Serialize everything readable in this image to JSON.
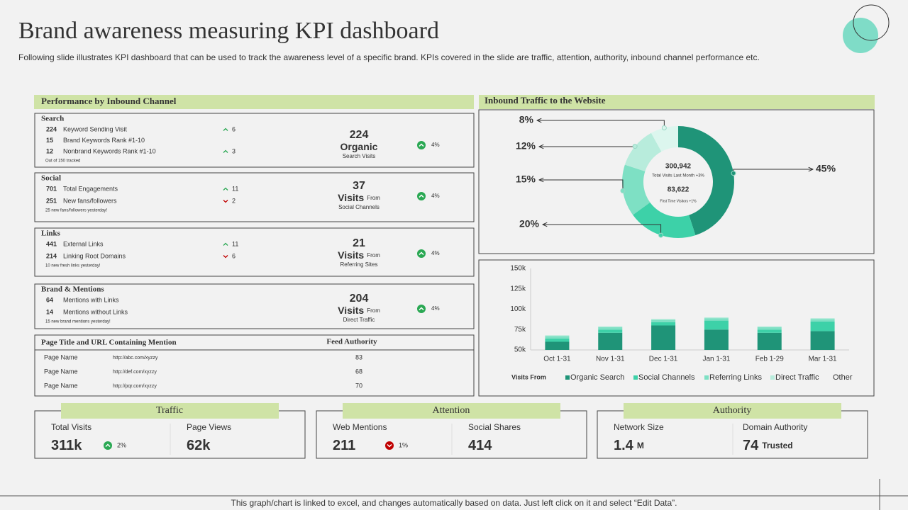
{
  "header": {
    "title": "Brand awareness measuring KPI dashboard",
    "subtitle": "Following slide illustrates KPI dashboard that can be used to track the awareness level of a specific brand. KPIs covered in the slide are traffic, attention, authority, inbound channel performance etc."
  },
  "channels": {
    "title": "Performance by Inbound Channel",
    "sections": [
      {
        "name": "Search",
        "rows": [
          {
            "value": "224",
            "label": "Keyword Sending Visit",
            "change": "6",
            "direction": "up"
          },
          {
            "value": "15",
            "label": "Brand Keywords Rank #1-10"
          },
          {
            "value": "12",
            "label": "Nonbrand Keywords Rank #1-10",
            "change": "3",
            "direction": "up"
          }
        ],
        "note": "Out of 150 tracked",
        "big_value": "224",
        "big_label": "Organic",
        "sub_label": "Search Visits",
        "growth": "4%"
      },
      {
        "name": "Social",
        "rows": [
          {
            "value": "701",
            "label": "Total Engagements",
            "change": "11",
            "direction": "up"
          },
          {
            "value": "251",
            "label": "New fans/followers",
            "change": "2",
            "direction": "down"
          }
        ],
        "note": "25 new fans/followers yesterday!",
        "big_value": "37",
        "big_label": "Visits",
        "big_suffix": "From",
        "sub_label": "Social Channels",
        "growth": "4%"
      },
      {
        "name": "Links",
        "rows": [
          {
            "value": "441",
            "label": "External Links",
            "change": "11",
            "direction": "up"
          },
          {
            "value": "214",
            "label": "Linking Root Domains",
            "change": "6",
            "direction": "down"
          }
        ],
        "note": "10 new fresh links yesterday!",
        "big_value": "21",
        "big_label": "Visits",
        "big_suffix": "From",
        "sub_label": "Referring Sites",
        "growth": "4%"
      },
      {
        "name": "Brand & Mentions",
        "rows": [
          {
            "value": "64",
            "label": "Mentions with Links"
          },
          {
            "value": "14",
            "label": "Mentions without Links"
          }
        ],
        "note": "15 new brand mentions yesterday!",
        "big_value": "204",
        "big_label": "Visits",
        "big_suffix": "From",
        "sub_label": "Direct Traffic",
        "growth": "4%"
      }
    ]
  },
  "mentions_table": {
    "title": "Page Title and URL Containing Mention",
    "value_header": "Feed Authority",
    "rows": [
      [
        "Page Name",
        "http://abc.com/xyzzy",
        "83"
      ],
      [
        "Page Name",
        "http://def.com/xyzzy",
        "68"
      ],
      [
        "Page Name",
        "http://pqr.com/xyzzy",
        "70"
      ]
    ]
  },
  "chart_data": [
    {
      "type": "donut",
      "title": "Inbound Traffic to the Website",
      "values": [
        45,
        20,
        15,
        12,
        8
      ],
      "value_labels": [
        "45%",
        "20%",
        "15%",
        "12%",
        "8%"
      ],
      "colors": [
        "#1f9478",
        "#3dd1a8",
        "#7ee0c4",
        "#b8ecdc",
        "#dcf6ee"
      ],
      "annotations": [
        "300,942",
        "Total Visits Last Month +3%",
        "83,622",
        "First Time Visitors +1%"
      ]
    },
    {
      "type": "stacked-bar",
      "categories": [
        "Oct 1-31",
        "Nov 1-31",
        "Dec 1-31",
        "Jan 1-31",
        "Feb 1-29",
        "Mar 1-31"
      ],
      "legend_title": "Visits From",
      "series": [
        {
          "name": "Organic Search",
          "color": "#1f9478",
          "values": [
            60000,
            71000,
            80000,
            75000,
            71000,
            73000
          ]
        },
        {
          "name": "Social Channels",
          "color": "#3dd1a8",
          "values": [
            4000,
            4000,
            4000,
            11000,
            4000,
            12000
          ]
        },
        {
          "name": "Referring Links",
          "color": "#7ee0c4",
          "values": [
            3000,
            3000,
            3000,
            3000,
            3000,
            3000
          ]
        },
        {
          "name": "Direct Traffic",
          "color": "#b8ecdc",
          "values": [
            1000,
            1000,
            1000,
            1000,
            1000,
            1000
          ]
        },
        {
          "name": "Other",
          "values": [
            null,
            null,
            null,
            null,
            null,
            null
          ]
        }
      ],
      "ylim": [
        50000,
        150000
      ],
      "yticks": [
        {
          "value": 50000,
          "label": "50k"
        },
        {
          "value": 75000,
          "label": "75k"
        },
        {
          "value": 100000,
          "label": "100k"
        },
        {
          "value": 125000,
          "label": "125k"
        },
        {
          "value": 150000,
          "label": "150k"
        }
      ],
      "grid": false
    }
  ],
  "kpis": [
    {
      "title": "Traffic",
      "items": [
        {
          "label": "Total Visits",
          "value": "311k",
          "change": "2%",
          "direction": "up"
        },
        {
          "label": "Page Views",
          "value": "62k"
        }
      ]
    },
    {
      "title": "Attention",
      "items": [
        {
          "label": "Web Mentions",
          "value": "211",
          "change": "1%",
          "direction": "down"
        },
        {
          "label": "Social Shares",
          "value": "414"
        }
      ]
    },
    {
      "title": "Authority",
      "items": [
        {
          "label": "Network Size",
          "value": "1.4",
          "unit": "M"
        },
        {
          "label": "Domain Authority",
          "value": "74",
          "unit": "Trusted"
        }
      ]
    }
  ],
  "footer": "This graph/chart is linked to excel, and changes automatically based on data. Just left click on it and select “Edit Data”."
}
